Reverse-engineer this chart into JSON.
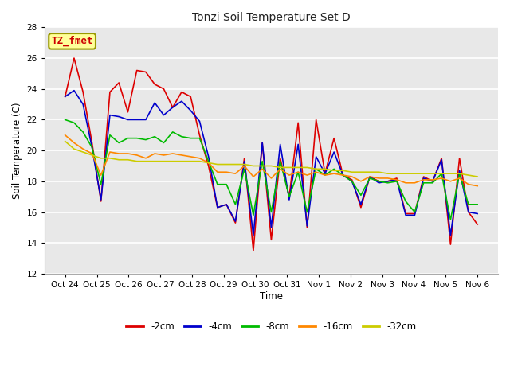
{
  "title": "Tonzi Soil Temperature Set D",
  "xlabel": "Time",
  "ylabel": "Soil Temperature (C)",
  "ylim": [
    12,
    28
  ],
  "yticks": [
    12,
    14,
    16,
    18,
    20,
    22,
    24,
    26,
    28
  ],
  "annotation_text": "TZ_fmet",
  "fig_bg_color": "#ffffff",
  "plot_bg_color": "#e8e8e8",
  "x_labels": [
    "Oct 24",
    "Oct 25",
    "Oct 26",
    "Oct 27",
    "Oct 28",
    "Oct 29",
    "Oct 30",
    "Oct 31",
    "Nov 1",
    "Nov 2",
    "Nov 3",
    "Nov 4",
    "Nov 5",
    "Nov 6"
  ],
  "series": {
    "-2cm": {
      "color": "#dd0000",
      "values": [
        23.5,
        26.0,
        23.8,
        20.5,
        16.7,
        23.8,
        24.4,
        22.5,
        25.2,
        25.1,
        24.3,
        24.0,
        22.8,
        23.8,
        23.5,
        21.0,
        19.0,
        16.3,
        16.5,
        15.3,
        19.5,
        13.5,
        20.5,
        14.2,
        19.5,
        17.0,
        21.8,
        15.0,
        22.0,
        18.5,
        20.8,
        18.4,
        18.1,
        16.3,
        18.3,
        18.0,
        18.0,
        18.2,
        15.9,
        15.9,
        18.3,
        18.0,
        19.5,
        13.9,
        19.5,
        16.0,
        15.2
      ]
    },
    "-4cm": {
      "color": "#0000cc",
      "values": [
        23.5,
        23.9,
        23.0,
        20.2,
        16.8,
        22.3,
        22.2,
        22.0,
        22.0,
        22.0,
        23.1,
        22.3,
        22.8,
        23.2,
        22.6,
        21.9,
        19.6,
        16.3,
        16.5,
        15.4,
        19.3,
        14.5,
        20.5,
        15.0,
        20.4,
        16.8,
        20.4,
        15.1,
        19.6,
        18.5,
        19.9,
        18.4,
        18.0,
        16.5,
        18.3,
        17.9,
        18.0,
        18.1,
        15.8,
        15.8,
        18.2,
        18.0,
        19.4,
        14.5,
        18.7,
        16.0,
        15.9
      ]
    },
    "-8cm": {
      "color": "#00bb00",
      "values": [
        22.0,
        21.8,
        21.2,
        20.2,
        17.8,
        21.0,
        20.5,
        20.8,
        20.8,
        20.7,
        20.9,
        20.5,
        21.2,
        20.9,
        20.8,
        20.8,
        19.3,
        17.8,
        17.8,
        16.5,
        18.8,
        15.8,
        19.3,
        16.0,
        19.3,
        17.0,
        18.6,
        16.0,
        18.8,
        18.4,
        18.8,
        18.4,
        18.0,
        17.1,
        18.2,
        18.0,
        17.9,
        18.0,
        16.7,
        16.0,
        17.9,
        17.9,
        18.5,
        15.5,
        18.5,
        16.5,
        16.5
      ]
    },
    "-16cm": {
      "color": "#ff8800",
      "values": [
        21.0,
        20.5,
        20.1,
        19.8,
        18.4,
        19.9,
        19.8,
        19.8,
        19.7,
        19.5,
        19.8,
        19.7,
        19.8,
        19.7,
        19.6,
        19.5,
        19.2,
        18.6,
        18.6,
        18.5,
        19.0,
        18.3,
        18.8,
        18.2,
        18.8,
        18.4,
        18.6,
        18.4,
        18.6,
        18.4,
        18.5,
        18.4,
        18.3,
        18.0,
        18.3,
        18.2,
        18.2,
        18.1,
        17.9,
        17.9,
        18.1,
        18.1,
        18.2,
        18.0,
        18.2,
        17.8,
        17.7
      ]
    },
    "-32cm": {
      "color": "#cccc00",
      "values": [
        20.6,
        20.1,
        19.9,
        19.7,
        19.5,
        19.5,
        19.4,
        19.4,
        19.3,
        19.3,
        19.3,
        19.3,
        19.3,
        19.3,
        19.3,
        19.3,
        19.2,
        19.1,
        19.1,
        19.1,
        19.1,
        19.0,
        19.0,
        19.0,
        18.9,
        18.9,
        18.9,
        18.9,
        18.8,
        18.8,
        18.7,
        18.7,
        18.6,
        18.6,
        18.6,
        18.6,
        18.5,
        18.5,
        18.5,
        18.5,
        18.5,
        18.5,
        18.5,
        18.5,
        18.5,
        18.4,
        18.3
      ]
    }
  },
  "n_points": 47,
  "grid_color": "#ffffff",
  "legend_labels": [
    "-2cm",
    "-4cm",
    "-8cm",
    "-16cm",
    "-32cm"
  ],
  "legend_colors": [
    "#dd0000",
    "#0000cc",
    "#00bb00",
    "#ff8800",
    "#cccc00"
  ]
}
